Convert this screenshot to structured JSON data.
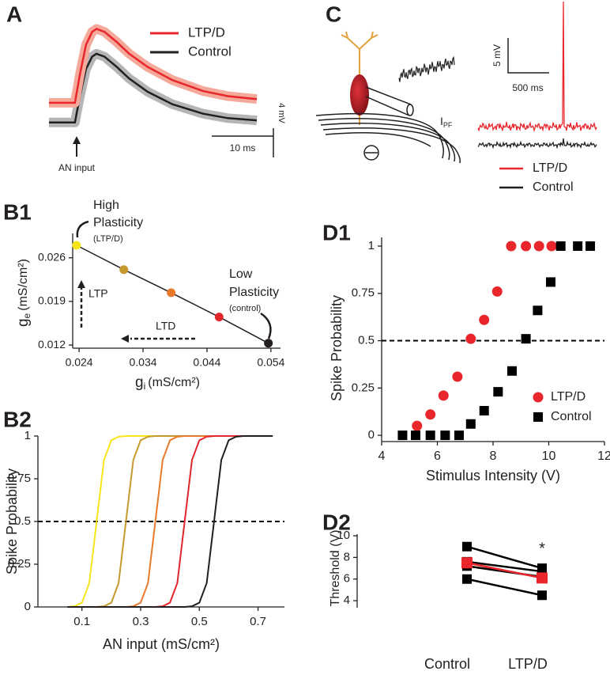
{
  "chart_data": [
    {
      "type": "line",
      "panel": "A",
      "x": [
        0,
        4.2,
        5,
        6,
        7,
        7.7,
        9,
        11,
        13,
        16,
        20,
        25,
        29,
        33.7
      ],
      "xlim": [
        0,
        33.7
      ],
      "ylim": [
        -1.1,
        13.5
      ],
      "series": [
        {
          "name": "LTP/D",
          "color": "#e8262b",
          "band_color": "#f4a99a",
          "values": [
            2.7,
            2.7,
            6.5,
            10.6,
            12.4,
            12.8,
            12.4,
            11.0,
            9.4,
            7.6,
            5.8,
            4.3,
            3.6,
            3.2
          ]
        },
        {
          "name": "Control",
          "color": "#231f20",
          "band_color": "#b5b5b8",
          "values": [
            0,
            0,
            3.5,
            7.3,
            9.0,
            9.4,
            9.0,
            7.6,
            6.0,
            4.2,
            2.5,
            1.2,
            0.6,
            0.3
          ]
        }
      ],
      "scalebar": {
        "x": 10,
        "x_label": "10 ms",
        "y": 4,
        "y_label": "4 mV"
      },
      "annotation": "AN input"
    },
    {
      "type": "scatter",
      "panel": "B1",
      "x": [
        0.0236,
        0.031,
        0.0384,
        0.0459,
        0.0536
      ],
      "values": [
        0.028,
        0.0241,
        0.0204,
        0.0165,
        0.0123
      ],
      "colors": [
        "#f7e51c",
        "#c49a2c",
        "#e8792b",
        "#e2262b",
        "#231f20"
      ],
      "xlim": [
        0.023,
        0.0555
      ],
      "ylim": [
        0.0115,
        0.0299
      ],
      "xticks": [
        0.024,
        0.034,
        0.044,
        0.054
      ],
      "yticks": [
        0.012,
        0.019,
        0.026
      ],
      "xlabel": {
        "main": "g",
        "sub": "i",
        "unit": "(mS/cm²)"
      },
      "ylabel": {
        "main": "g",
        "sub": "e",
        "unit": "(mS/cm²)"
      },
      "annotations": {
        "high": [
          "High",
          "Plasticity",
          "(LTP/D)"
        ],
        "low": [
          "Low",
          "Plasticity",
          "(control)"
        ],
        "ltp": "LTP",
        "ltd": "LTD"
      }
    },
    {
      "type": "line",
      "panel": "B2",
      "x": [
        0.05,
        0.075,
        0.1,
        0.125,
        0.15,
        0.175,
        0.2,
        0.225,
        0.25,
        0.275,
        0.3,
        0.325,
        0.35,
        0.375,
        0.4,
        0.425,
        0.45,
        0.475,
        0.5,
        0.525,
        0.55,
        0.575,
        0.6,
        0.625,
        0.65,
        0.675,
        0.7,
        0.725,
        0.75
      ],
      "series": [
        {
          "color": "#f7e51c",
          "values": [
            0,
            0.004,
            0.025,
            0.14,
            0.5,
            0.86,
            0.975,
            0.996,
            1,
            1,
            1,
            1,
            1,
            1,
            1,
            1,
            1,
            1,
            1,
            1,
            1,
            1,
            1,
            1,
            1,
            1,
            1,
            1,
            1
          ]
        },
        {
          "color": "#c49a2c",
          "values": [
            0,
            0,
            0,
            0,
            0,
            0.004,
            0.025,
            0.14,
            0.5,
            0.86,
            0.975,
            0.996,
            1,
            1,
            1,
            1,
            1,
            1,
            1,
            1,
            1,
            1,
            1,
            1,
            1,
            1,
            1,
            1,
            1
          ]
        },
        {
          "color": "#e8792b",
          "values": [
            0,
            0,
            0,
            0,
            0,
            0,
            0,
            0,
            0,
            0.004,
            0.025,
            0.14,
            0.5,
            0.86,
            0.975,
            0.996,
            1,
            1,
            1,
            1,
            1,
            1,
            1,
            1,
            1,
            1,
            1,
            1,
            1
          ]
        },
        {
          "color": "#e2262b",
          "values": [
            0,
            0,
            0,
            0,
            0,
            0,
            0,
            0,
            0,
            0,
            0,
            0,
            0,
            0.004,
            0.025,
            0.14,
            0.5,
            0.86,
            0.975,
            0.996,
            1,
            1,
            1,
            1,
            1,
            1,
            1,
            1,
            1
          ]
        },
        {
          "color": "#231f20",
          "values": [
            0,
            0,
            0,
            0,
            0,
            0,
            0,
            0,
            0,
            0,
            0,
            0,
            0,
            0,
            0,
            0,
            0,
            0.004,
            0.025,
            0.14,
            0.5,
            0.86,
            0.975,
            0.996,
            1,
            1,
            1,
            1,
            1
          ]
        }
      ],
      "xlim": [
        -0.05,
        0.79
      ],
      "ylim": [
        0,
        1
      ],
      "xticks": [
        0.1,
        0.3,
        0.5,
        0.7
      ],
      "yticks": [
        0,
        0.25,
        0.5,
        0.75,
        1
      ],
      "threshold": 0.5,
      "xlabel": "AN input (mS/cm²)",
      "ylabel": "Spike Probability"
    },
    {
      "type": "diagram",
      "panel": "C",
      "current_label": {
        "main": "I",
        "sub": "PF"
      },
      "scalebar": {
        "y_label": "5 mV",
        "x_label": "500 ms"
      },
      "series": [
        {
          "name": "LTP/D",
          "color": "#e8262b"
        },
        {
          "name": "Control",
          "color": "#231f20"
        }
      ]
    },
    {
      "type": "scatter",
      "panel": "D1",
      "series": [
        {
          "name": "LTP/D",
          "color": "#e8262b",
          "marker": "circle",
          "x": [
            5.27,
            5.75,
            6.22,
            6.72,
            7.2,
            7.68,
            8.15,
            8.65,
            9.18,
            9.65,
            10.1
          ],
          "values": [
            0.05,
            0.11,
            0.21,
            0.31,
            0.51,
            0.61,
            0.76,
            1,
            1,
            1,
            1
          ]
        },
        {
          "name": "Control",
          "color": "#000000",
          "marker": "square",
          "x": [
            4.75,
            5.22,
            5.75,
            6.28,
            6.78,
            7.2,
            7.68,
            8.18,
            8.68,
            9.18,
            9.6,
            10.07,
            10.43,
            11.04,
            11.49
          ],
          "values": [
            0,
            0,
            0,
            0,
            0,
            0.06,
            0.13,
            0.23,
            0.34,
            0.51,
            0.66,
            0.81,
            1,
            1,
            1
          ]
        }
      ],
      "xlim": [
        4,
        12
      ],
      "ylim": [
        -0.033,
        1.046
      ],
      "xticks": [
        4,
        6,
        8,
        10,
        12
      ],
      "yticks": [
        0,
        0.25,
        0.5,
        0.75,
        1
      ],
      "threshold": 0.5,
      "xlabel": "Stimulus Intensity (V)",
      "ylabel": "Spike Probability"
    },
    {
      "type": "paired",
      "panel": "D2",
      "categories": [
        "Control",
        "LTP/D"
      ],
      "series": [
        {
          "color": "#000000",
          "values": [
            9,
            7
          ]
        },
        {
          "color": "#000000",
          "values": [
            7.6,
            6.7
          ]
        },
        {
          "color": "#000000",
          "values": [
            7.2,
            6.2
          ]
        },
        {
          "color": "#000000",
          "values": [
            6,
            4.5
          ]
        }
      ],
      "mean": {
        "color": "#e8262b",
        "values": [
          7.5,
          6.1
        ],
        "errors": [
          0.5,
          0.45
        ]
      },
      "ylim": [
        3.35,
        10.15
      ],
      "yticks": [
        4,
        6,
        8,
        10
      ],
      "ylabel": "Threshold (V)",
      "annotation": "*"
    }
  ]
}
